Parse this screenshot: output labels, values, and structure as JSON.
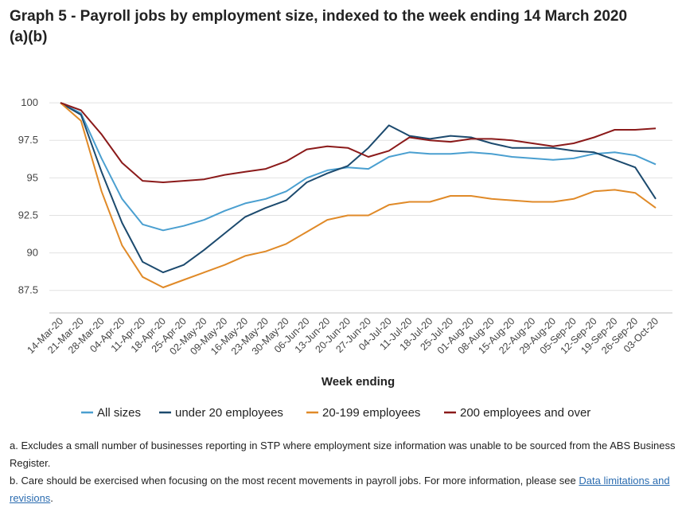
{
  "title_line1": "Graph 5 - Payroll jobs by employment size, indexed to the week ending 14 March 2020",
  "title_line2": "(a)(b)",
  "chart_data": {
    "type": "line",
    "title": "Graph 5 - Payroll jobs by employment size, indexed to the week ending 14 March 2020",
    "xlabel": "Week ending",
    "ylabel": "",
    "ylim": [
      86,
      102.5
    ],
    "yticks": [
      87.5,
      90,
      92.5,
      95,
      97.5,
      100
    ],
    "ytick_labels": [
      "87.5",
      "90",
      "92.5",
      "95",
      "97.5",
      "100"
    ],
    "grid": true,
    "legend_position": "bottom",
    "categories": [
      "14-Mar-20",
      "21-Mar-20",
      "28-Mar-20",
      "04-Apr-20",
      "11-Apr-20",
      "18-Apr-20",
      "25-Apr-20",
      "02-May-20",
      "09-May-20",
      "16-May-20",
      "23-May-20",
      "30-May-20",
      "06-Jun-20",
      "13-Jun-20",
      "20-Jun-20",
      "27-Jun-20",
      "04-Jul-20",
      "11-Jul-20",
      "18-Jul-20",
      "25-Jul-20",
      "01-Aug-20",
      "08-Aug-20",
      "15-Aug-20",
      "22-Aug-20",
      "29-Aug-20",
      "05-Sep-20",
      "12-Sep-20",
      "19-Sep-20",
      "26-Sep-20",
      "03-Oct-20"
    ],
    "series": [
      {
        "name": "All sizes",
        "color": "#4a9fd0",
        "values": [
          100,
          99.3,
          96.3,
          93.6,
          91.9,
          91.5,
          91.8,
          92.2,
          92.8,
          93.3,
          93.6,
          94.1,
          95.0,
          95.5,
          95.7,
          95.6,
          96.4,
          96.7,
          96.6,
          96.6,
          96.7,
          96.6,
          96.4,
          96.3,
          96.2,
          96.3,
          96.6,
          96.7,
          96.5,
          95.9
        ]
      },
      {
        "name": "under 20 employees",
        "color": "#1c4a6e",
        "values": [
          100,
          99.2,
          95.4,
          92.0,
          89.4,
          88.7,
          89.2,
          90.2,
          91.3,
          92.4,
          93.0,
          93.5,
          94.7,
          95.3,
          95.8,
          97.0,
          98.5,
          97.8,
          97.6,
          97.8,
          97.7,
          97.3,
          97.0,
          97.0,
          97.0,
          96.8,
          96.7,
          96.2,
          95.7,
          93.6
        ]
      },
      {
        "name": "20-199 employees",
        "color": "#e08a28",
        "values": [
          100,
          98.8,
          94.1,
          90.5,
          88.4,
          87.7,
          88.2,
          88.7,
          89.2,
          89.8,
          90.1,
          90.6,
          91.4,
          92.2,
          92.5,
          92.5,
          93.2,
          93.4,
          93.4,
          93.8,
          93.8,
          93.6,
          93.5,
          93.4,
          93.4,
          93.6,
          94.1,
          94.2,
          94.0,
          93.0
        ]
      },
      {
        "name": "200 employees and over",
        "color": "#8b1a1a",
        "values": [
          100,
          99.5,
          97.9,
          96.0,
          94.8,
          94.7,
          94.8,
          94.9,
          95.2,
          95.4,
          95.6,
          96.1,
          96.9,
          97.1,
          97.0,
          96.4,
          96.8,
          97.7,
          97.5,
          97.4,
          97.6,
          97.6,
          97.5,
          97.3,
          97.1,
          97.3,
          97.7,
          98.2,
          98.2,
          98.3
        ]
      }
    ]
  },
  "notes": {
    "a": "a. Excludes a small number of businesses reporting in STP where employment size information was unable to be sourced from the ABS Business Register.",
    "b_text": "b. Care should be exercised when focusing on the most recent movements in payroll jobs. For more information, please see ",
    "b_link": "Data limitations and revisions",
    "b_end": "."
  }
}
